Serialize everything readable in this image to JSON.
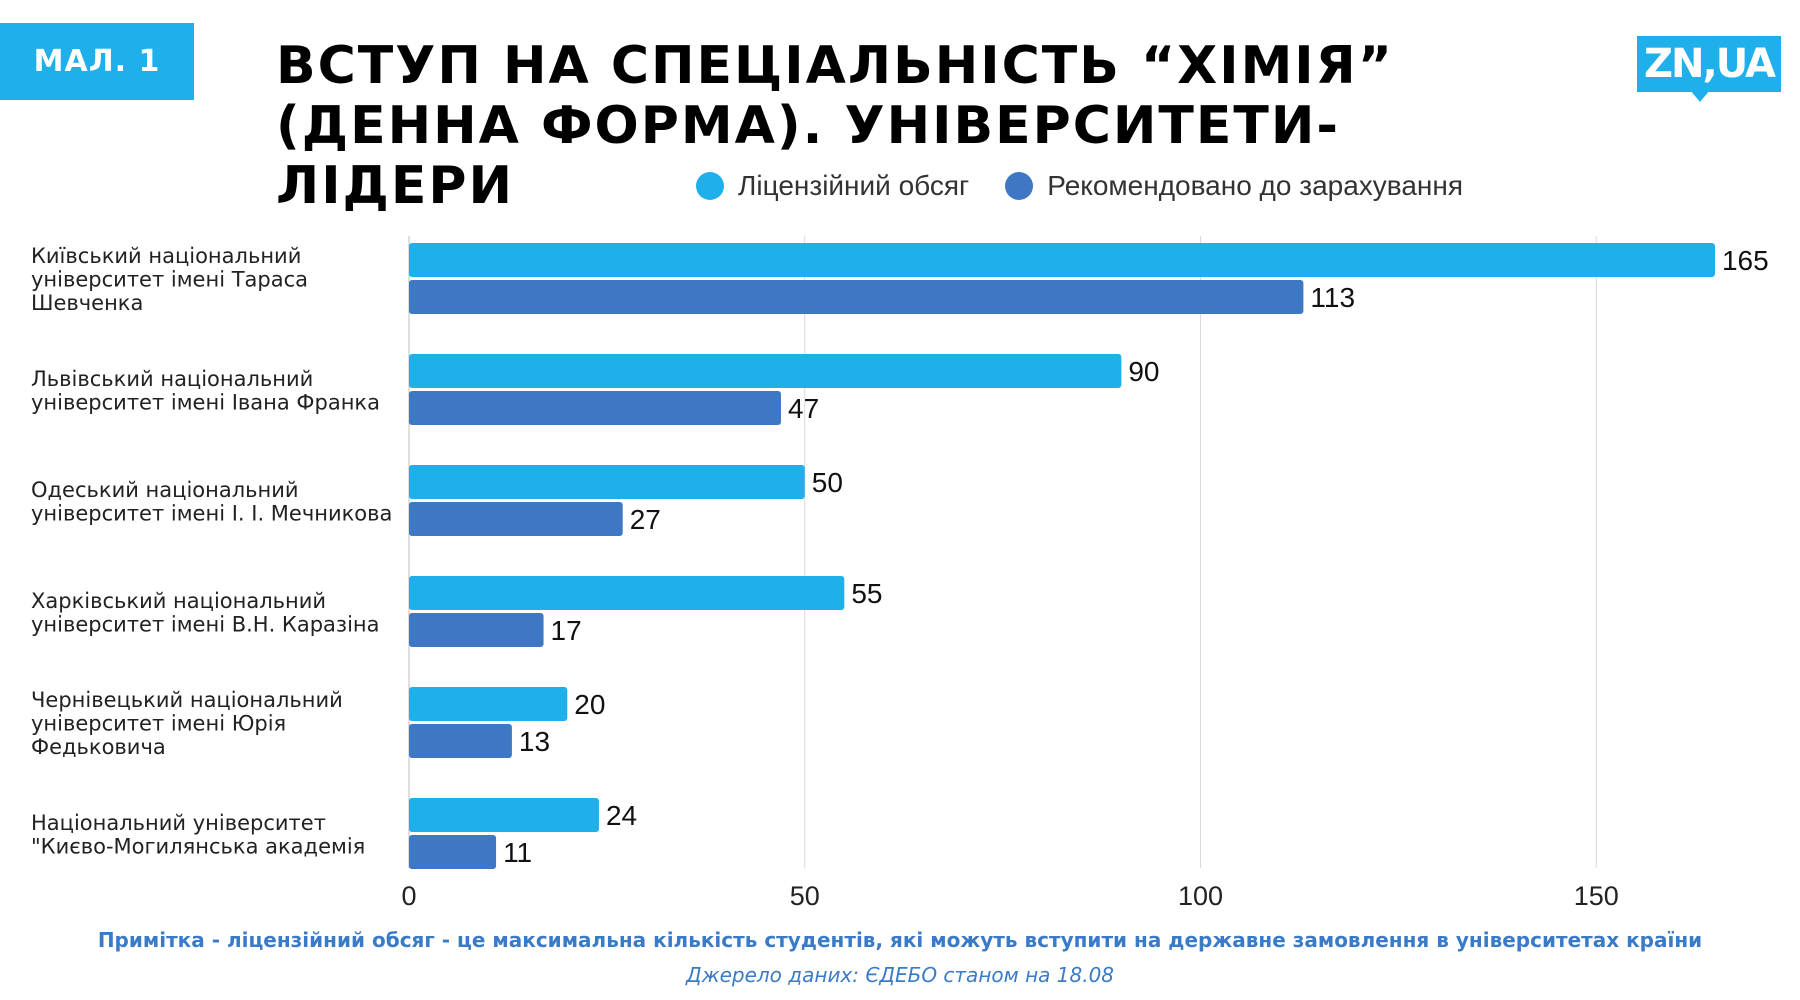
{
  "badge": "МАЛ. 1",
  "logo": {
    "text": "ZN,UA"
  },
  "colors": {
    "licensed": "#1fb0ec",
    "recommended": "#3e78c4",
    "accent": "#1fb0ec",
    "note": "#3a7bc8"
  },
  "chart_data": {
    "type": "bar",
    "orientation": "horizontal",
    "title": "ВСТУП НА СПЕЦІАЛЬНІСТЬ “ХІМІЯ” (ДЕННА ФОРМА). УНІВЕРСИТЕТИ-ЛІДЕРИ",
    "categories": [
      [
        "Київський національний",
        "університет імені Тараса",
        "Шевченка"
      ],
      [
        "Львівський національний",
        "університет імені Івана Франка"
      ],
      [
        "Одеський національний",
        "університет імені І. І. Мечникова"
      ],
      [
        "Харківський національний",
        "університет імені В.Н. Каразіна"
      ],
      [
        "Чернівецький національний",
        "університет імені Юрія",
        "Федьковича"
      ],
      [
        "Національний університет",
        "\"Києво-Могилянська академія"
      ]
    ],
    "series": [
      {
        "name": "Ліцензійний обсяг",
        "values": [
          165,
          90,
          50,
          55,
          20,
          24
        ]
      },
      {
        "name": "Рекомендовано до зарахування",
        "values": [
          113,
          47,
          27,
          17,
          13,
          11
        ]
      }
    ],
    "xlim": [
      0,
      165
    ],
    "xticks": [
      "0",
      "50",
      "100",
      "150"
    ],
    "grid": true,
    "legend": "top"
  },
  "footer": {
    "note": "Примітка - ліцензійний обсяг - це максимальна кількість студентів, які можуть вступити на державне замовлення в університетах країни",
    "source": "Джерело даних: ЄДЕБО станом на 18.08"
  }
}
